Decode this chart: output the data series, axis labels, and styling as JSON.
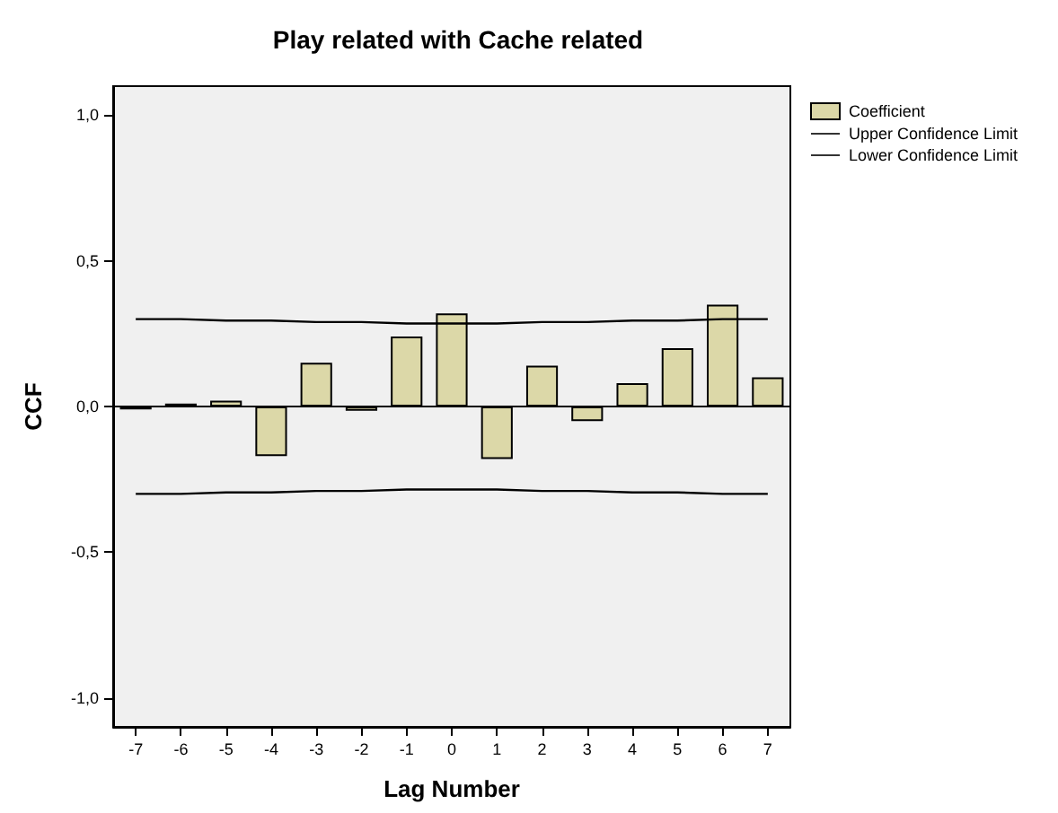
{
  "chart_data": {
    "type": "bar",
    "title": "Play related with Cache related",
    "xlabel": "Lag Number",
    "ylabel": "CCF",
    "categories": [
      "-7",
      "-6",
      "-5",
      "-4",
      "-3",
      "-2",
      "-1",
      "0",
      "1",
      "2",
      "3",
      "4",
      "5",
      "6",
      "7"
    ],
    "series": [
      {
        "name": "Coefficient",
        "color": "#dcd8a8",
        "values": [
          -0.01,
          0.01,
          0.02,
          -0.17,
          0.15,
          -0.015,
          0.24,
          0.32,
          -0.18,
          0.14,
          -0.05,
          0.08,
          0.2,
          0.35,
          0.1
        ]
      },
      {
        "name": "Upper Confidence Limit",
        "type": "line",
        "color": "#000000",
        "values": [
          0.3,
          0.3,
          0.295,
          0.295,
          0.29,
          0.29,
          0.285,
          0.285,
          0.285,
          0.29,
          0.29,
          0.295,
          0.295,
          0.3,
          0.3
        ]
      },
      {
        "name": "Lower Confidence Limit",
        "type": "line",
        "color": "#000000",
        "values": [
          -0.3,
          -0.3,
          -0.295,
          -0.295,
          -0.29,
          -0.29,
          -0.285,
          -0.285,
          -0.285,
          -0.29,
          -0.29,
          -0.295,
          -0.295,
          -0.3,
          -0.3
        ]
      }
    ],
    "ylim": [
      -1.1,
      1.1
    ],
    "yticks": [
      {
        "value": -1,
        "label": "-1,0"
      },
      {
        "value": -0.5,
        "label": "-0,5"
      },
      {
        "value": 0,
        "label": "0,0"
      },
      {
        "value": 0.5,
        "label": "0,5"
      },
      {
        "value": 1,
        "label": "1,0"
      }
    ],
    "ref_lines": [
      {
        "axis": "y",
        "value": 0,
        "color": "#000000"
      }
    ],
    "legend": "top right",
    "grid": false,
    "marker": "none",
    "line_style": "solid"
  }
}
